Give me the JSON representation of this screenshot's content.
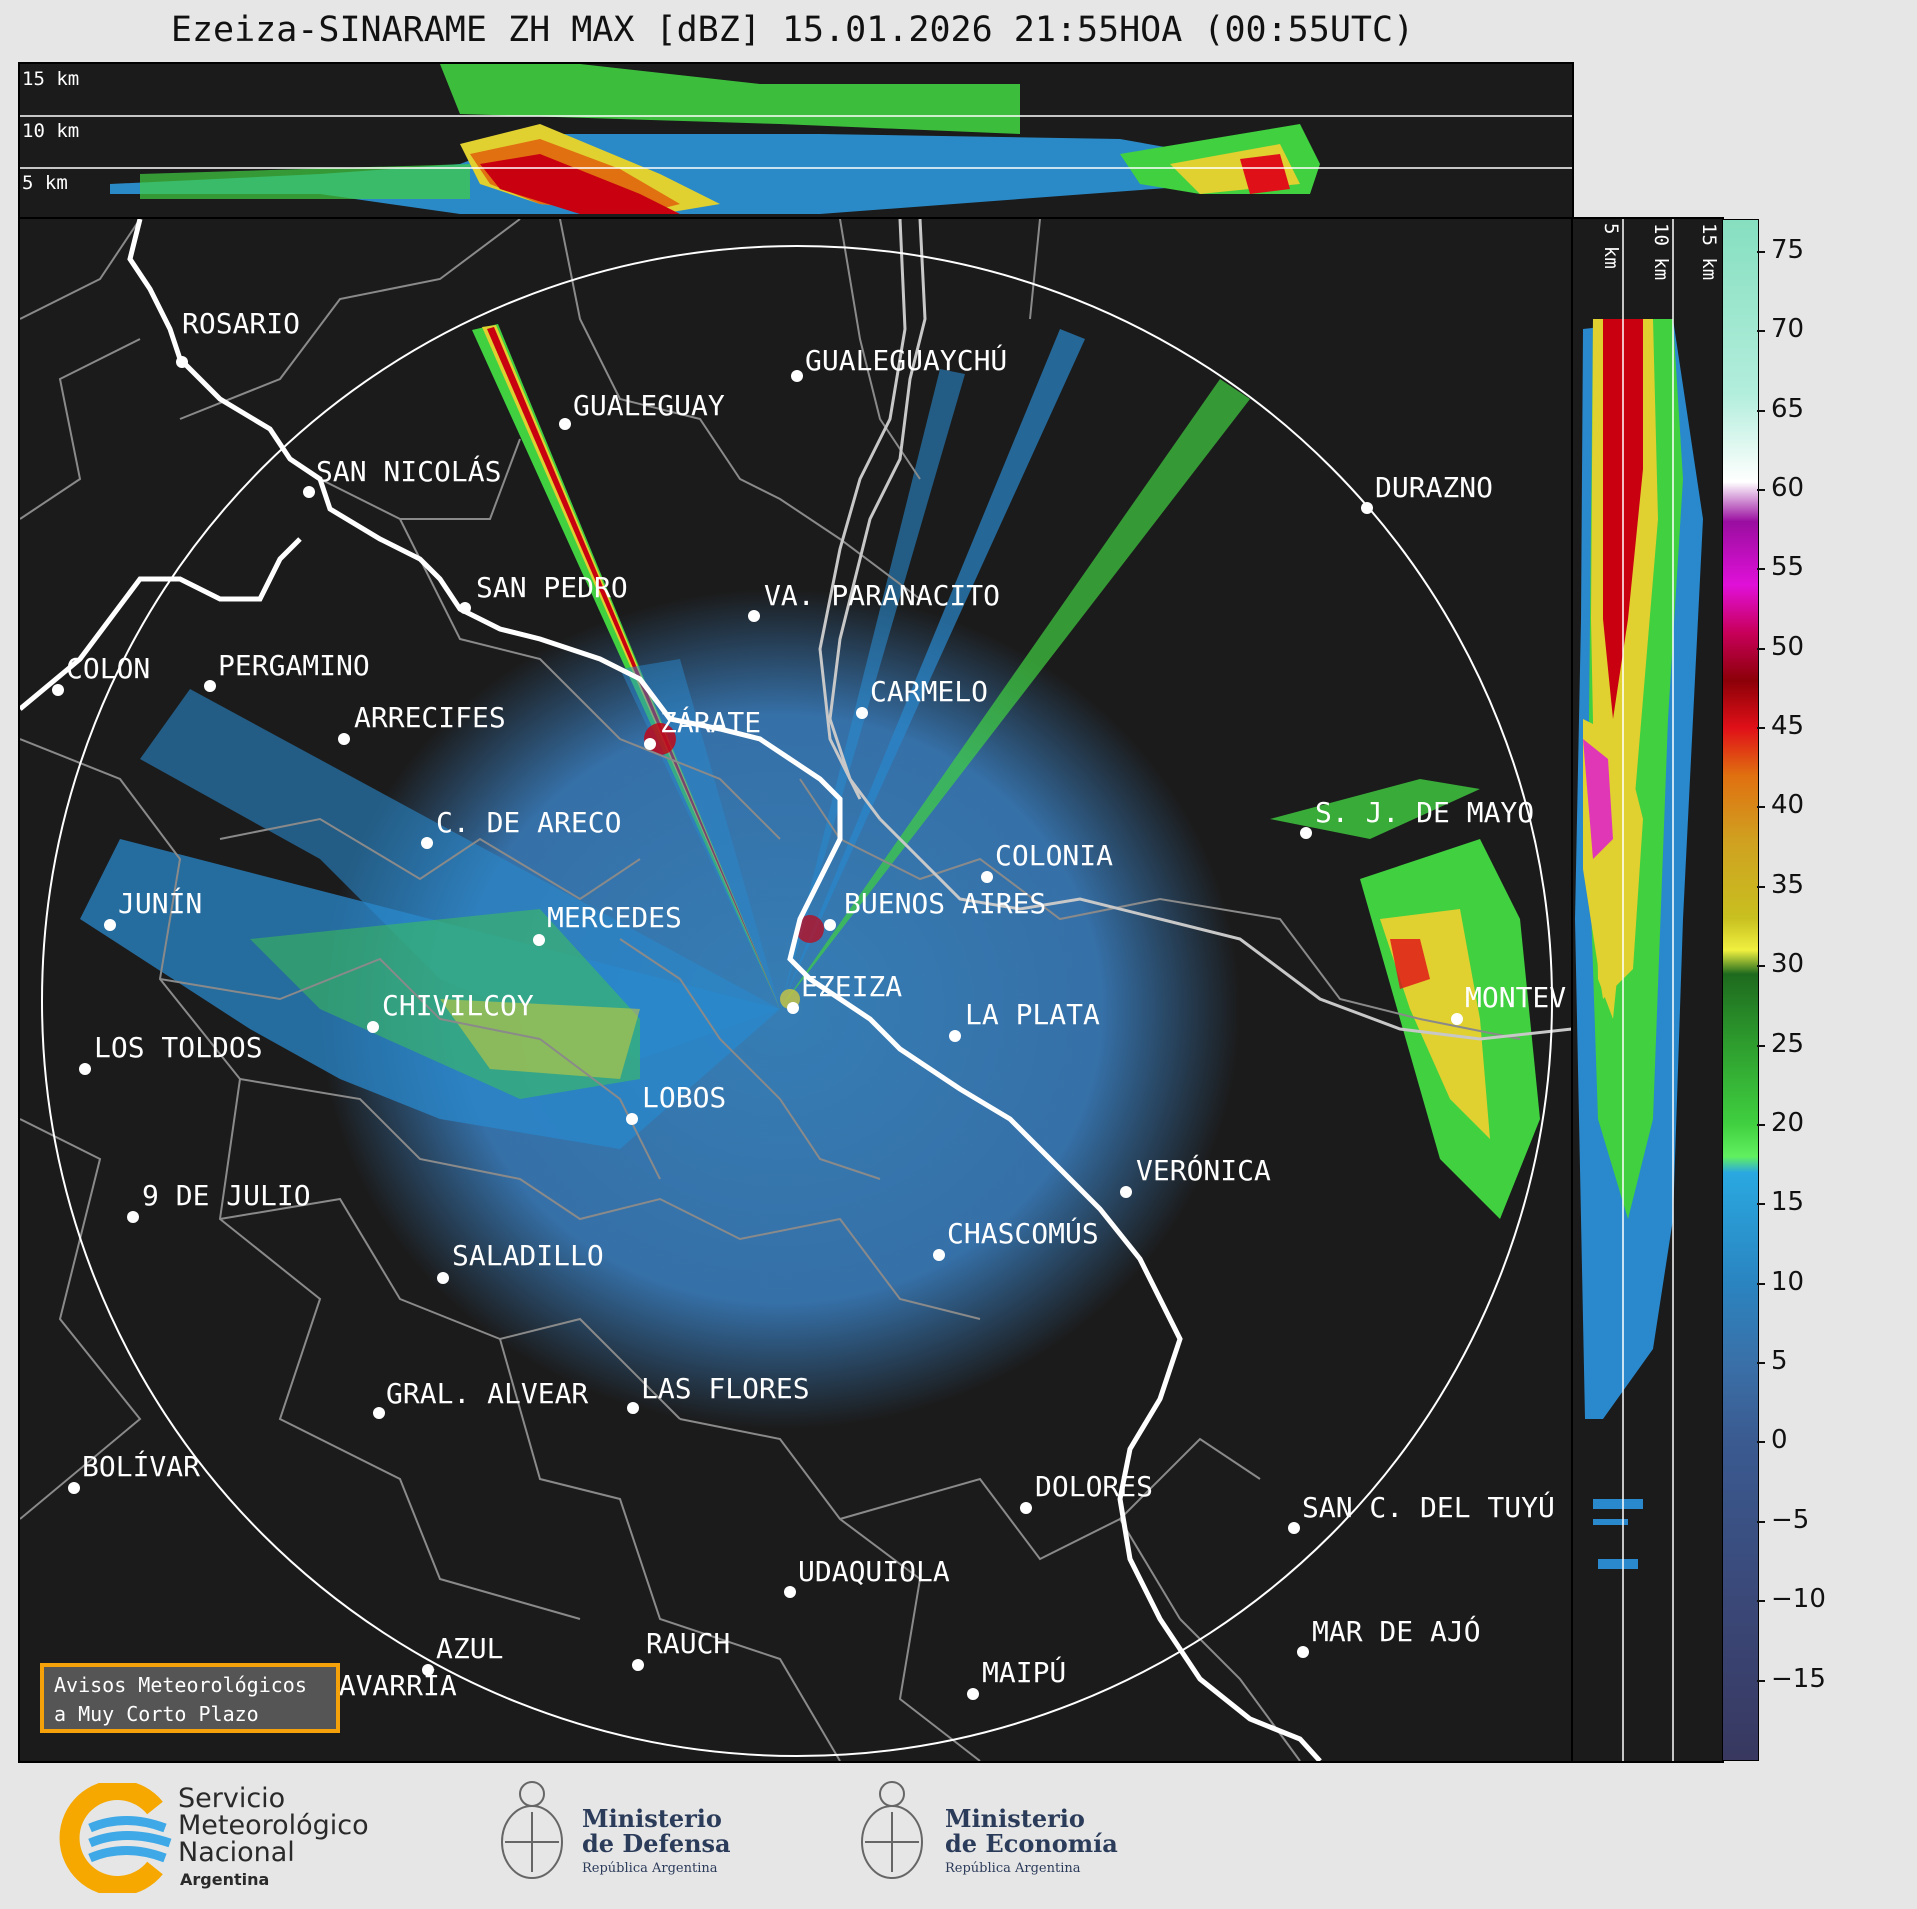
{
  "title": "Ezeiza-SINARAME ZH MAX [dBZ] 15.01.2026 21:55HOA (00:55UTC)",
  "altitude_labels": {
    "top": [
      "15 km",
      "10 km",
      "5 km"
    ],
    "right": [
      "5 km",
      "10 km",
      "15 km"
    ]
  },
  "colorbar": {
    "ticks": [
      "75",
      "70",
      "65",
      "60",
      "55",
      "50",
      "45",
      "40",
      "35",
      "30",
      "25",
      "20",
      "15",
      "10",
      "5",
      "0",
      "−5",
      "−10",
      "−15"
    ],
    "range": [
      -20,
      77
    ],
    "stops": [
      {
        "v": 77,
        "c": "#86dfc0"
      },
      {
        "v": 66,
        "c": "#b3eedc"
      },
      {
        "v": 60.5,
        "c": "#ffffff"
      },
      {
        "v": 58,
        "c": "#9a0ea0"
      },
      {
        "v": 54,
        "c": "#e010d8"
      },
      {
        "v": 51,
        "c": "#c8005a"
      },
      {
        "v": 48,
        "c": "#8c0008"
      },
      {
        "v": 45,
        "c": "#e01018"
      },
      {
        "v": 42,
        "c": "#e07010"
      },
      {
        "v": 38,
        "c": "#d0a020"
      },
      {
        "v": 33,
        "c": "#c8c020"
      },
      {
        "v": 31,
        "c": "#f0f040"
      },
      {
        "v": 29.5,
        "c": "#1e6a1e"
      },
      {
        "v": 25,
        "c": "#2e9e2e"
      },
      {
        "v": 20,
        "c": "#40d040"
      },
      {
        "v": 18,
        "c": "#60f060"
      },
      {
        "v": 17,
        "c": "#2aa8e0"
      },
      {
        "v": 10,
        "c": "#2a84c0"
      },
      {
        "v": 5,
        "c": "#3a70a8"
      },
      {
        "v": 0,
        "c": "#3a5a90"
      },
      {
        "v": -10,
        "c": "#3a4878"
      },
      {
        "v": -20,
        "c": "#383860"
      }
    ]
  },
  "cities": [
    {
      "name": "ROSARIO"
    },
    {
      "name": "GUALEGUAYCHÚ"
    },
    {
      "name": "GUALEGUAY"
    },
    {
      "name": "SAN NICOLÁS"
    },
    {
      "name": "DURAZNO"
    },
    {
      "name": "SAN PEDRO"
    },
    {
      "name": "VA. PARANACITO"
    },
    {
      "name": "COLON"
    },
    {
      "name": "PERGAMINO"
    },
    {
      "name": "CARMELO"
    },
    {
      "name": "ARRECIFES"
    },
    {
      "name": "ZÁRATE"
    },
    {
      "name": "S. J. DE MAYO"
    },
    {
      "name": "C. DE ARECO"
    },
    {
      "name": "COLONIA"
    },
    {
      "name": "JUNÍN"
    },
    {
      "name": "BUENOS AIRES"
    },
    {
      "name": "MERCEDES"
    },
    {
      "name": "EZEIZA"
    },
    {
      "name": "MONTEV"
    },
    {
      "name": "CHIVILCOY"
    },
    {
      "name": "LA PLATA"
    },
    {
      "name": "LOS TOLDOS"
    },
    {
      "name": "LOBOS"
    },
    {
      "name": "VERÓNICA"
    },
    {
      "name": "9 DE JULIO"
    },
    {
      "name": "CHASCOMÚS"
    },
    {
      "name": "SALADILLO"
    },
    {
      "name": "GRAL. ALVEAR"
    },
    {
      "name": "LAS FLORES"
    },
    {
      "name": "BOLÍVAR"
    },
    {
      "name": "DOLORES"
    },
    {
      "name": "SAN C. DEL TUYÚ"
    },
    {
      "name": "UDAQUIOLA"
    },
    {
      "name": "MAR DE AJÓ"
    },
    {
      "name": "AZUL"
    },
    {
      "name": "RAUCH"
    },
    {
      "name": "OLAVARRÍA"
    },
    {
      "name": "MAIPÚ"
    }
  ],
  "notice": {
    "line1": "Avisos Meteorológicos",
    "line2": "a Muy Corto Plazo"
  },
  "logos": {
    "smn": [
      "Servicio",
      "Meteorológico",
      "Nacional",
      "Argentina"
    ],
    "defensa": [
      "Ministerio",
      "de Defensa",
      "República Argentina"
    ],
    "economia": [
      "Ministerio",
      "de Economía",
      "República Argentina"
    ]
  },
  "colors": {
    "panel": "#1b1b1b",
    "coast": "#ffffff",
    "borders": "#8a8a8a",
    "ring": "#ffffff",
    "notice_border": "#f4a10a"
  }
}
